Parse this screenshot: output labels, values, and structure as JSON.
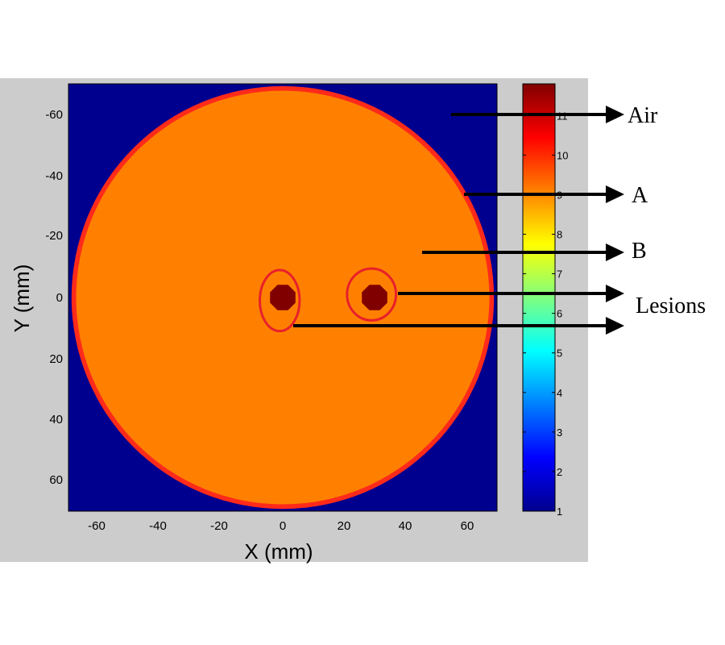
{
  "figure": {
    "xlabel": "X (mm)",
    "ylabel": "Y (mm)",
    "x_ticks": [
      "-60",
      "-40",
      "-20",
      "0",
      "20",
      "40",
      "60"
    ],
    "y_ticks": [
      "-60",
      "-40",
      "-20",
      "0",
      "20",
      "40",
      "60"
    ],
    "x_range_mm": [
      -70,
      70
    ],
    "y_range_mm": [
      -70,
      70
    ],
    "y_axis_direction": "down",
    "colormap": "jet",
    "colorbar": {
      "ticks": [
        "1",
        "2",
        "3",
        "4",
        "5",
        "6",
        "7",
        "8",
        "9",
        "10",
        "11"
      ],
      "range": [
        1,
        11.8
      ]
    }
  },
  "phantom": {
    "background_material": "Air",
    "background_value": 1,
    "outer_disk": {
      "center_mm": [
        0,
        0
      ],
      "radius_mm": 69,
      "value": 10.2
    },
    "inner_disk": {
      "center_mm": [
        0,
        0
      ],
      "radius_mm": 67.5,
      "value": 8.9
    },
    "lesions": [
      {
        "center_mm": [
          0,
          0
        ],
        "radius_mm": 4.5,
        "value": 11.8
      },
      {
        "center_mm": [
          30,
          0
        ],
        "radius_mm": 4.5,
        "value": 11.8
      }
    ],
    "highlight_rings": [
      {
        "center_mm": [
          -1,
          1
        ],
        "rx_mm": 6.5,
        "ry_mm": 10,
        "color": "#e8202a"
      },
      {
        "center_mm": [
          29,
          -1
        ],
        "rx_mm": 8,
        "ry_mm": 8.5,
        "color": "#e8202a"
      }
    ]
  },
  "annotations": [
    {
      "label": "Air"
    },
    {
      "label": "A"
    },
    {
      "label": "B"
    },
    {
      "label": "Lesions"
    }
  ],
  "colors": {
    "frame": "#cccccc",
    "air": "#00008f",
    "region_a": "#ff2a1a",
    "region_b": "#ff8000",
    "lesion": "#800000",
    "arrow": "#000000"
  }
}
